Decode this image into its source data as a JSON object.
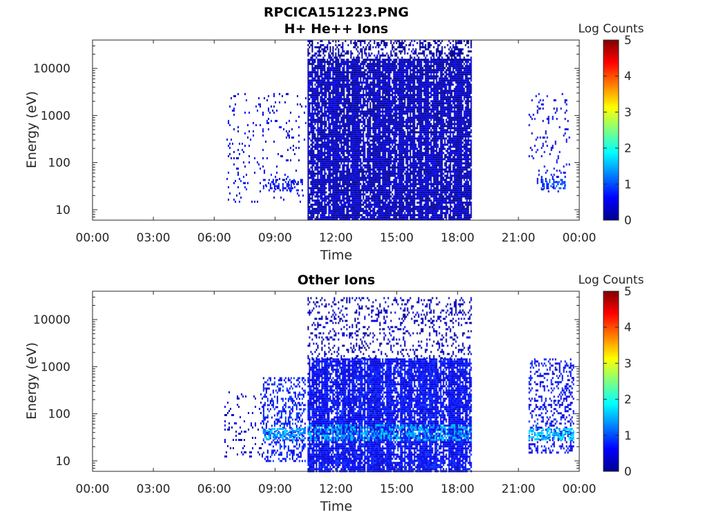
{
  "figure_title": "RPCICA151223.PNG",
  "colormap": "jet",
  "colors": {
    "dense": "#000080",
    "mid": "#0000ff",
    "cyan": "#00c8ff",
    "axis": "#262626"
  },
  "chart_data": [
    {
      "type": "heatmap",
      "title": "H+ He++ Ions",
      "xlabel": "Time",
      "ylabel": "Energy (eV)",
      "xticks": [
        "00:00",
        "03:00",
        "06:00",
        "09:00",
        "12:00",
        "15:00",
        "18:00",
        "21:00",
        "00:00"
      ],
      "xlim_hours": [
        0,
        24
      ],
      "yscale": "log",
      "ylim": [
        6,
        40000
      ],
      "yticks": [
        "10",
        "100",
        "1000",
        "10000"
      ],
      "colorbar": {
        "label": "Log Counts",
        "range": [
          0,
          5
        ],
        "ticks": [
          "0",
          "1",
          "2",
          "3",
          "4",
          "5"
        ]
      },
      "regions": [
        {
          "t_start_h": 10.6,
          "t_end_h": 18.7,
          "e_min_ev": 6,
          "e_max_ev": 16000,
          "log_counts": 0.3,
          "density": 0.96
        },
        {
          "t_start_h": 10.6,
          "t_end_h": 18.7,
          "e_min_ev": 16000,
          "e_max_ev": 40000,
          "log_counts": 0.2,
          "density": 0.45
        },
        {
          "t_start_h": 6.6,
          "t_end_h": 10.5,
          "e_min_ev": 15,
          "e_max_ev": 3000,
          "log_counts": 0.5,
          "density": 0.06
        },
        {
          "t_start_h": 8.4,
          "t_end_h": 10.4,
          "e_min_ev": 25,
          "e_max_ev": 45,
          "log_counts": 0.6,
          "density": 0.35
        },
        {
          "t_start_h": 21.5,
          "t_end_h": 23.5,
          "e_min_ev": 25,
          "e_max_ev": 3000,
          "log_counts": 0.5,
          "density": 0.08
        },
        {
          "t_start_h": 22.1,
          "t_end_h": 23.3,
          "e_min_ev": 28,
          "e_max_ev": 45,
          "log_counts": 0.9,
          "density": 0.6
        }
      ]
    },
    {
      "type": "heatmap",
      "title": "Other Ions",
      "xlabel": "Time",
      "ylabel": "Energy (eV)",
      "xticks": [
        "00:00",
        "03:00",
        "06:00",
        "09:00",
        "12:00",
        "15:00",
        "18:00",
        "21:00",
        "00:00"
      ],
      "xlim_hours": [
        0,
        24
      ],
      "yscale": "log",
      "ylim": [
        6,
        40000
      ],
      "yticks": [
        "10",
        "100",
        "1000",
        "10000"
      ],
      "colorbar": {
        "label": "Log Counts",
        "range": [
          0,
          5
        ],
        "ticks": [
          "0",
          "1",
          "2",
          "3",
          "4",
          "5"
        ]
      },
      "regions": [
        {
          "t_start_h": 10.6,
          "t_end_h": 18.7,
          "e_min_ev": 6,
          "e_max_ev": 1500,
          "log_counts": 0.6,
          "density": 0.85
        },
        {
          "t_start_h": 10.6,
          "t_end_h": 18.7,
          "e_min_ev": 1500,
          "e_max_ev": 30000,
          "log_counts": 0.3,
          "density": 0.2
        },
        {
          "t_start_h": 10.6,
          "t_end_h": 18.7,
          "e_min_ev": 28,
          "e_max_ev": 60,
          "log_counts": 1.5,
          "density": 0.45
        },
        {
          "t_start_h": 6.5,
          "t_end_h": 8.4,
          "e_min_ev": 12,
          "e_max_ev": 300,
          "log_counts": 0.4,
          "density": 0.1
        },
        {
          "t_start_h": 8.4,
          "t_end_h": 10.5,
          "e_min_ev": 10,
          "e_max_ev": 600,
          "log_counts": 0.7,
          "density": 0.35
        },
        {
          "t_start_h": 8.4,
          "t_end_h": 10.5,
          "e_min_ev": 30,
          "e_max_ev": 50,
          "log_counts": 1.4,
          "density": 0.55
        },
        {
          "t_start_h": 21.5,
          "t_end_h": 23.7,
          "e_min_ev": 15,
          "e_max_ev": 1500,
          "log_counts": 0.6,
          "density": 0.3
        },
        {
          "t_start_h": 21.5,
          "t_end_h": 23.7,
          "e_min_ev": 30,
          "e_max_ev": 50,
          "log_counts": 1.6,
          "density": 0.6
        }
      ]
    }
  ]
}
